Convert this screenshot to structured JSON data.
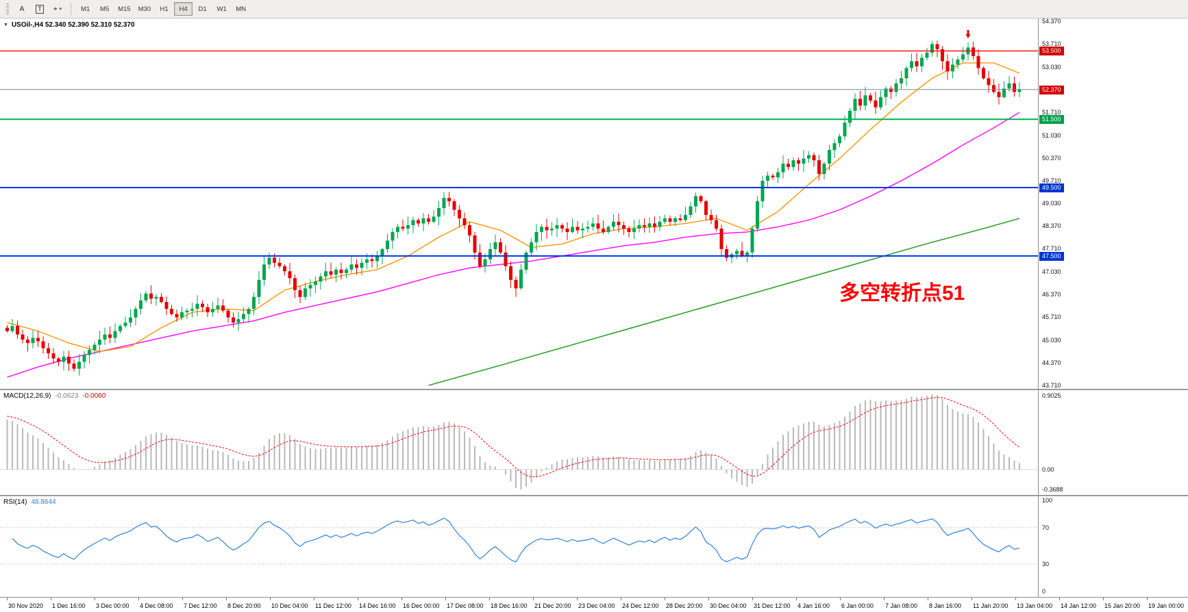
{
  "icons": {
    "caret_down": "▼",
    "chevron_down": "▾",
    "crosshair": "⌖"
  },
  "toolbar": {
    "font_label": "A",
    "text_label": "T",
    "timeframes": [
      {
        "label": "M1",
        "active": false
      },
      {
        "label": "M5",
        "active": false
      },
      {
        "label": "M15",
        "active": false
      },
      {
        "label": "M30",
        "active": false
      },
      {
        "label": "H1",
        "active": false
      },
      {
        "label": "H4",
        "active": true
      },
      {
        "label": "D1",
        "active": false
      },
      {
        "label": "W1",
        "active": false
      },
      {
        "label": "MN",
        "active": false
      }
    ]
  },
  "chart": {
    "title": "USOil-,H4 52.340 52.390 52.310 52.370",
    "annotation": "多空转折点51",
    "annotation_color": "#ff0000",
    "price_scale": [
      "54.370",
      "53.710",
      "53.030",
      "52.370",
      "51.710",
      "51.030",
      "50.370",
      "49.710",
      "49.030",
      "48.370",
      "47.710",
      "47.030",
      "46.370",
      "45.710",
      "45.030",
      "44.370",
      "43.710"
    ],
    "hlines": [
      {
        "price": 53.5,
        "label": "53.500",
        "color": "#ff0000",
        "badge": "#d20000",
        "width": 1.4
      },
      {
        "price": 51.5,
        "label": "51.500",
        "color": "#00b050",
        "badge": "#00a04a",
        "width": 2
      },
      {
        "price": 49.5,
        "label": "49.500",
        "color": "#0033ee",
        "badge": "#0033d6",
        "width": 2
      },
      {
        "price": 47.5,
        "label": "47.500",
        "color": "#0033ee",
        "badge": "#0033d6",
        "width": 2
      }
    ],
    "bid": {
      "price": 52.37,
      "label": "52.370",
      "line_color": "#778899",
      "badge": "#d20000"
    }
  },
  "chart_data": {
    "type": "candlestick",
    "symbol": "USOil-",
    "timeframe": "H4",
    "open": "52.340",
    "high": "52.390",
    "low": "52.310",
    "close": "52.370",
    "price_range": [
      43.71,
      54.37
    ],
    "first_open": 45.4,
    "bull_color": "#00a651",
    "bear_color": "#e60000",
    "closes": [
      45.3,
      45.45,
      45.2,
      45.05,
      44.95,
      45.1,
      45.0,
      44.8,
      44.65,
      44.5,
      44.4,
      44.55,
      44.35,
      44.2,
      44.4,
      44.6,
      44.75,
      44.9,
      45.05,
      45.2,
      45.1,
      45.3,
      45.45,
      45.55,
      45.7,
      45.95,
      46.2,
      46.4,
      46.25,
      46.3,
      46.15,
      45.95,
      45.8,
      45.7,
      45.85,
      45.9,
      45.95,
      46.1,
      46.0,
      45.85,
      45.95,
      46.05,
      45.9,
      45.7,
      45.55,
      45.65,
      45.8,
      45.95,
      46.3,
      46.8,
      47.25,
      47.45,
      47.3,
      47.2,
      47.05,
      46.85,
      46.5,
      46.3,
      46.55,
      46.65,
      46.75,
      46.9,
      47.05,
      46.95,
      47.1,
      47.0,
      47.1,
      47.25,
      47.15,
      47.3,
      47.4,
      47.35,
      47.5,
      47.7,
      47.95,
      48.2,
      48.35,
      48.3,
      48.4,
      48.55,
      48.45,
      48.6,
      48.5,
      48.65,
      48.9,
      49.2,
      49.1,
      48.85,
      48.6,
      48.4,
      48.1,
      47.6,
      47.2,
      47.4,
      47.7,
      47.9,
      47.6,
      47.2,
      46.8,
      46.55,
      47.1,
      47.6,
      47.9,
      48.2,
      48.35,
      48.25,
      48.3,
      48.4,
      48.3,
      48.2,
      48.35,
      48.25,
      48.3,
      48.35,
      48.45,
      48.3,
      48.2,
      48.35,
      48.5,
      48.4,
      48.3,
      48.2,
      48.3,
      48.4,
      48.35,
      48.45,
      48.35,
      48.5,
      48.6,
      48.5,
      48.6,
      48.55,
      48.7,
      48.95,
      49.25,
      49.1,
      48.7,
      48.55,
      48.3,
      47.7,
      47.45,
      47.55,
      47.65,
      47.5,
      47.6,
      48.3,
      49.1,
      49.7,
      49.85,
      49.8,
      49.95,
      50.2,
      50.1,
      50.3,
      50.2,
      50.35,
      50.45,
      50.3,
      49.9,
      50.2,
      50.6,
      50.8,
      51.0,
      51.4,
      51.75,
      52.1,
      51.9,
      52.2,
      52.05,
      51.85,
      52.15,
      52.4,
      52.3,
      52.55,
      52.7,
      53.0,
      53.2,
      53.05,
      53.3,
      53.45,
      53.7,
      53.55,
      53.2,
      52.9,
      53.1,
      53.25,
      53.4,
      53.6,
      53.35,
      53.0,
      52.7,
      52.5,
      52.3,
      52.15,
      52.4,
      52.55,
      52.3,
      52.37
    ],
    "ma_fast": {
      "color": "#ff9500",
      "anchors": [
        [
          0,
          45.55
        ],
        [
          6,
          45.3
        ],
        [
          12,
          44.95
        ],
        [
          18,
          44.7
        ],
        [
          24,
          44.85
        ],
        [
          30,
          45.4
        ],
        [
          36,
          45.85
        ],
        [
          42,
          45.95
        ],
        [
          48,
          45.9
        ],
        [
          54,
          46.5
        ],
        [
          60,
          46.75
        ],
        [
          66,
          46.95
        ],
        [
          72,
          47.1
        ],
        [
          78,
          47.5
        ],
        [
          84,
          48.05
        ],
        [
          90,
          48.5
        ],
        [
          96,
          48.25
        ],
        [
          102,
          47.75
        ],
        [
          108,
          47.85
        ],
        [
          114,
          48.15
        ],
        [
          120,
          48.3
        ],
        [
          126,
          48.35
        ],
        [
          132,
          48.45
        ],
        [
          138,
          48.6
        ],
        [
          144,
          48.25
        ],
        [
          150,
          48.8
        ],
        [
          156,
          49.6
        ],
        [
          162,
          50.35
        ],
        [
          168,
          51.2
        ],
        [
          174,
          52.0
        ],
        [
          180,
          52.7
        ],
        [
          186,
          53.15
        ],
        [
          192,
          53.15
        ],
        [
          197,
          52.85
        ]
      ]
    },
    "ma_medium": {
      "color": "#ff00ff",
      "anchors": [
        [
          0,
          43.95
        ],
        [
          6,
          44.25
        ],
        [
          12,
          44.5
        ],
        [
          18,
          44.7
        ],
        [
          24,
          44.9
        ],
        [
          30,
          45.1
        ],
        [
          36,
          45.3
        ],
        [
          42,
          45.45
        ],
        [
          48,
          45.6
        ],
        [
          54,
          45.85
        ],
        [
          60,
          46.05
        ],
        [
          66,
          46.25
        ],
        [
          72,
          46.45
        ],
        [
          78,
          46.7
        ],
        [
          84,
          46.95
        ],
        [
          90,
          47.15
        ],
        [
          96,
          47.25
        ],
        [
          102,
          47.35
        ],
        [
          108,
          47.5
        ],
        [
          114,
          47.65
        ],
        [
          120,
          47.8
        ],
        [
          126,
          47.9
        ],
        [
          132,
          48.05
        ],
        [
          138,
          48.15
        ],
        [
          144,
          48.2
        ],
        [
          150,
          48.35
        ],
        [
          156,
          48.55
        ],
        [
          162,
          48.85
        ],
        [
          168,
          49.25
        ],
        [
          174,
          49.7
        ],
        [
          180,
          50.2
        ],
        [
          186,
          50.75
        ],
        [
          192,
          51.25
        ],
        [
          197,
          51.7
        ]
      ]
    },
    "ma_slow": {
      "color": "#2ba02b",
      "anchors": [
        [
          82,
          43.71
        ],
        [
          96,
          44.3
        ],
        [
          110,
          44.9
        ],
        [
          124,
          45.5
        ],
        [
          138,
          46.1
        ],
        [
          152,
          46.7
        ],
        [
          166,
          47.3
        ],
        [
          180,
          47.9
        ],
        [
          190,
          48.3
        ],
        [
          197,
          48.6
        ]
      ]
    },
    "markers": [
      {
        "bar": 187,
        "price": 54.05,
        "type": "sell-arrow",
        "color": "#e60000"
      }
    ]
  },
  "macd": {
    "name": "MACD(12,26,9)",
    "value_main": "-0.0623",
    "value_signal": "-0.0060",
    "scale_top": "0.9025",
    "scale_zero": "0.00",
    "scale_bottom": "-0.3688",
    "histogram_color": "#b8b8b8",
    "signal_color": "#ff0000"
  },
  "rsi": {
    "name": "RSI(14)",
    "value": "48.8644",
    "scale": [
      "100",
      "70",
      "30",
      "0"
    ],
    "levels": [
      70,
      30
    ],
    "line_color": "#2f7ed8"
  },
  "time_axis": {
    "labels": [
      "30 Nov 2020",
      "1 Dec 16:00",
      "3 Dec 00:00",
      "4 Dec 08:00",
      "7 Dec 12:00",
      "8 Dec 20:00",
      "10 Dec 04:00",
      "11 Dec 12:00",
      "14 Dec 16:00",
      "16 Dec 00:00",
      "17 Dec 08:00",
      "18 Dec 16:00",
      "21 Dec 20:00",
      "23 Dec 04:00",
      "24 Dec 12:00",
      "28 Dec 20:00",
      "30 Dec 04:00",
      "31 Dec 12:00",
      "4 Jan 16:00",
      "6 Jan 00:00",
      "7 Jan 08:00",
      "8 Jan 16:00",
      "11 Jan 20:00",
      "13 Jan 04:00",
      "14 Jan 12:00",
      "15 Jan 20:00",
      "19 Jan 00:00"
    ]
  }
}
